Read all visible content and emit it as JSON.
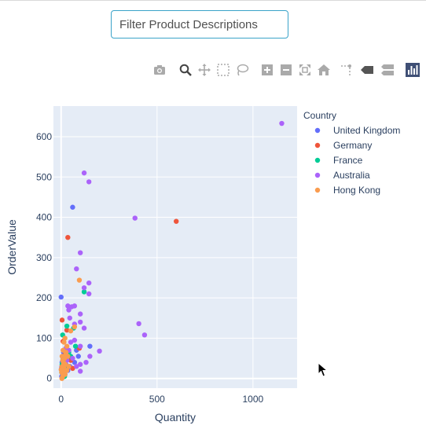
{
  "filter": {
    "placeholder": "Filter Product Descriptions",
    "value": ""
  },
  "modebar": {
    "buttons": [
      {
        "icon": "camera-icon"
      },
      {
        "icon": "zoom-icon"
      },
      {
        "icon": "pan-icon"
      },
      {
        "icon": "box-select-icon"
      },
      {
        "icon": "lasso-select-icon"
      },
      {
        "icon": "zoom-in-icon"
      },
      {
        "icon": "zoom-out-icon"
      },
      {
        "icon": "autoscale-icon"
      },
      {
        "icon": "reset-axes-icon"
      },
      {
        "icon": "spike-lines-icon"
      },
      {
        "icon": "hover-closest-icon"
      },
      {
        "icon": "hover-compare-icon"
      },
      {
        "icon": "plotly-logo-icon"
      }
    ]
  },
  "chart_data": {
    "type": "scatter",
    "xlabel": "Quantity",
    "ylabel": "OrderValue",
    "xlim": [
      -40,
      1230
    ],
    "ylim": [
      -24,
      676
    ],
    "x_ticks": [
      0,
      500,
      1000
    ],
    "y_ticks": [
      0,
      100,
      200,
      300,
      400,
      500,
      600
    ],
    "grid": true,
    "plot_background": "#e5ecf6",
    "legend": {
      "title": "Country",
      "placement": "right"
    },
    "series": [
      {
        "name": "United Kingdom",
        "color": "#636efa",
        "points": [
          [
            0,
            202
          ],
          [
            60,
            425
          ],
          [
            150,
            80
          ],
          [
            80,
            70
          ],
          [
            12,
            65
          ],
          [
            5,
            40
          ],
          [
            25,
            35
          ],
          [
            45,
            30
          ],
          [
            8,
            15
          ],
          [
            20,
            10
          ],
          [
            3,
            5
          ],
          [
            35,
            20
          ],
          [
            70,
            40
          ],
          [
            90,
            55
          ],
          [
            2,
            25
          ],
          [
            15,
            50
          ]
        ]
      },
      {
        "name": "Germany",
        "color": "#ef553b",
        "points": [
          [
            600,
            390
          ],
          [
            35,
            350
          ],
          [
            5,
            145
          ],
          [
            30,
            120
          ],
          [
            95,
            75
          ],
          [
            10,
            92
          ],
          [
            22,
            60
          ],
          [
            50,
            45
          ],
          [
            4,
            30
          ],
          [
            12,
            20
          ],
          [
            60,
            25
          ]
        ]
      },
      {
        "name": "France",
        "color": "#00cc96",
        "points": [
          [
            120,
            215
          ],
          [
            30,
            130
          ],
          [
            8,
            108
          ],
          [
            75,
            80
          ],
          [
            15,
            70
          ],
          [
            40,
            65
          ],
          [
            10,
            50
          ],
          [
            5,
            35
          ],
          [
            25,
            25
          ],
          [
            50,
            55
          ],
          [
            3,
            15
          ],
          [
            18,
            5
          ],
          [
            65,
            125
          ]
        ]
      },
      {
        "name": "Australia",
        "color": "#ab63fa",
        "points": [
          [
            1150,
            633
          ],
          [
            120,
            510
          ],
          [
            145,
            488
          ],
          [
            385,
            398
          ],
          [
            100,
            312
          ],
          [
            80,
            272
          ],
          [
            145,
            237
          ],
          [
            145,
            210
          ],
          [
            120,
            225
          ],
          [
            35,
            180
          ],
          [
            55,
            178
          ],
          [
            70,
            180
          ],
          [
            40,
            170
          ],
          [
            100,
            160
          ],
          [
            45,
            150
          ],
          [
            100,
            140
          ],
          [
            70,
            135
          ],
          [
            405,
            136
          ],
          [
            435,
            108
          ],
          [
            120,
            125
          ],
          [
            70,
            95
          ],
          [
            200,
            68
          ],
          [
            100,
            80
          ],
          [
            150,
            55
          ],
          [
            130,
            40
          ],
          [
            100,
            35
          ],
          [
            80,
            30
          ],
          [
            60,
            50
          ],
          [
            40,
            70
          ],
          [
            25,
            75
          ],
          [
            100,
            18
          ],
          [
            30,
            45
          ],
          [
            50,
            90
          ]
        ]
      },
      {
        "name": "Hong Kong",
        "color": "#fa9c4f",
        "points": [
          [
            95,
            244
          ],
          [
            70,
            128
          ],
          [
            50,
            118
          ],
          [
            20,
            100
          ],
          [
            15,
            90
          ],
          [
            30,
            80
          ],
          [
            10,
            70
          ],
          [
            25,
            60
          ],
          [
            5,
            55
          ],
          [
            18,
            50
          ],
          [
            8,
            45
          ],
          [
            12,
            40
          ],
          [
            22,
            35
          ],
          [
            6,
            30
          ],
          [
            15,
            25
          ],
          [
            10,
            20
          ],
          [
            3,
            15
          ],
          [
            20,
            10
          ],
          [
            8,
            5
          ],
          [
            4,
            0
          ],
          [
            30,
            20
          ],
          [
            40,
            30
          ],
          [
            35,
            55
          ],
          [
            0,
            22
          ],
          [
            12,
            12
          ],
          [
            25,
            65
          ]
        ]
      }
    ]
  }
}
